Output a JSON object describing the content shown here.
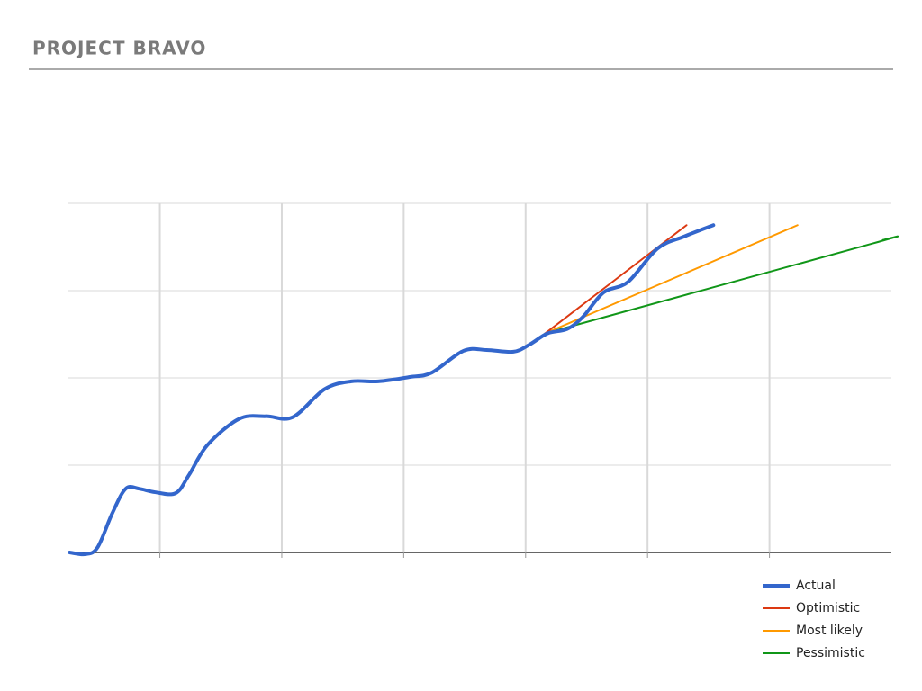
{
  "chart_data": {
    "type": "line",
    "title": "PROJECT BRAVO",
    "xlim": [
      0.25,
      7
    ],
    "xticks": [
      1,
      2,
      3,
      4,
      5,
      6
    ],
    "ylim": [
      0,
      4
    ],
    "yticks": [
      0,
      1,
      2,
      3,
      4
    ],
    "grid": true,
    "legend": "bottom-right",
    "series": [
      {
        "name": "Actual",
        "color": "#3366cc",
        "width": 4,
        "x": [
          0.26,
          0.39,
          0.49,
          0.61,
          0.72,
          0.83,
          0.96,
          1.13,
          1.24,
          1.39,
          1.65,
          1.87,
          2.09,
          2.35,
          2.57,
          2.79,
          3.05,
          3.23,
          3.49,
          3.68,
          3.9,
          4.03,
          4.18,
          4.34,
          4.47,
          4.64,
          4.84,
          5.08,
          5.3,
          5.54
        ],
        "values": [
          0,
          -0.02,
          0.06,
          0.45,
          0.73,
          0.73,
          0.69,
          0.68,
          0.89,
          1.23,
          1.53,
          1.56,
          1.55,
          1.87,
          1.96,
          1.96,
          2.01,
          2.06,
          2.31,
          2.32,
          2.3,
          2.38,
          2.51,
          2.56,
          2.7,
          2.98,
          3.1,
          3.48,
          3.62,
          3.75
        ]
      },
      {
        "name": "Optimistic",
        "color": "#dc3912",
        "width": 2,
        "x": [
          4.16,
          5.32
        ],
        "values": [
          2.51,
          3.75
        ]
      },
      {
        "name": "Most likely",
        "color": "#ff9900",
        "width": 2,
        "x": [
          4.16,
          6.23
        ],
        "values": [
          2.51,
          3.75
        ]
      },
      {
        "name": "Pessimistic",
        "color": "#109618",
        "width": 2,
        "x": [
          4.16,
          6.82,
          6.93
        ],
        "values": [
          2.51,
          3.53,
          3.58
        ]
      }
    ]
  }
}
